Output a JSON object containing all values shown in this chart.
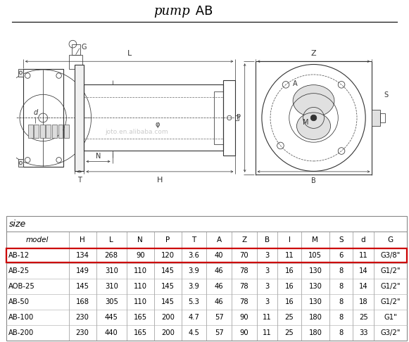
{
  "bg_color": "#ffffff",
  "table_headers": [
    "model",
    "H",
    "L",
    "N",
    "P",
    "T",
    "A",
    "Z",
    "B",
    "I",
    "M",
    "S",
    "d",
    "G"
  ],
  "table_rows": [
    [
      "AB-12",
      "134",
      "268",
      "90",
      "120",
      "3.6",
      "40",
      "70",
      "3",
      "11",
      "105",
      "6",
      "11",
      "G3/8\""
    ],
    [
      "AB-25",
      "149",
      "310",
      "110",
      "145",
      "3.9",
      "46",
      "78",
      "3",
      "16",
      "130",
      "8",
      "14",
      "G1/2\""
    ],
    [
      "AOB-25",
      "145",
      "310",
      "110",
      "145",
      "3.9",
      "46",
      "78",
      "3",
      "16",
      "130",
      "8",
      "14",
      "G1/2\""
    ],
    [
      "AB-50",
      "168",
      "305",
      "110",
      "145",
      "5.3",
      "46",
      "78",
      "3",
      "16",
      "130",
      "8",
      "18",
      "G1/2\""
    ],
    [
      "AB-100",
      "230",
      "445",
      "165",
      "200",
      "4.7",
      "57",
      "90",
      "11",
      "25",
      "180",
      "8",
      "25",
      "G1\""
    ],
    [
      "AB-200",
      "230",
      "440",
      "165",
      "200",
      "4.5",
      "57",
      "90",
      "11",
      "25",
      "180",
      "8",
      "33",
      "G3/2\""
    ]
  ],
  "highlighted_row": 0,
  "highlight_border_color": "#cc0000",
  "table_border_color": "#888888",
  "watermark": "joto.en.alibaba.com"
}
